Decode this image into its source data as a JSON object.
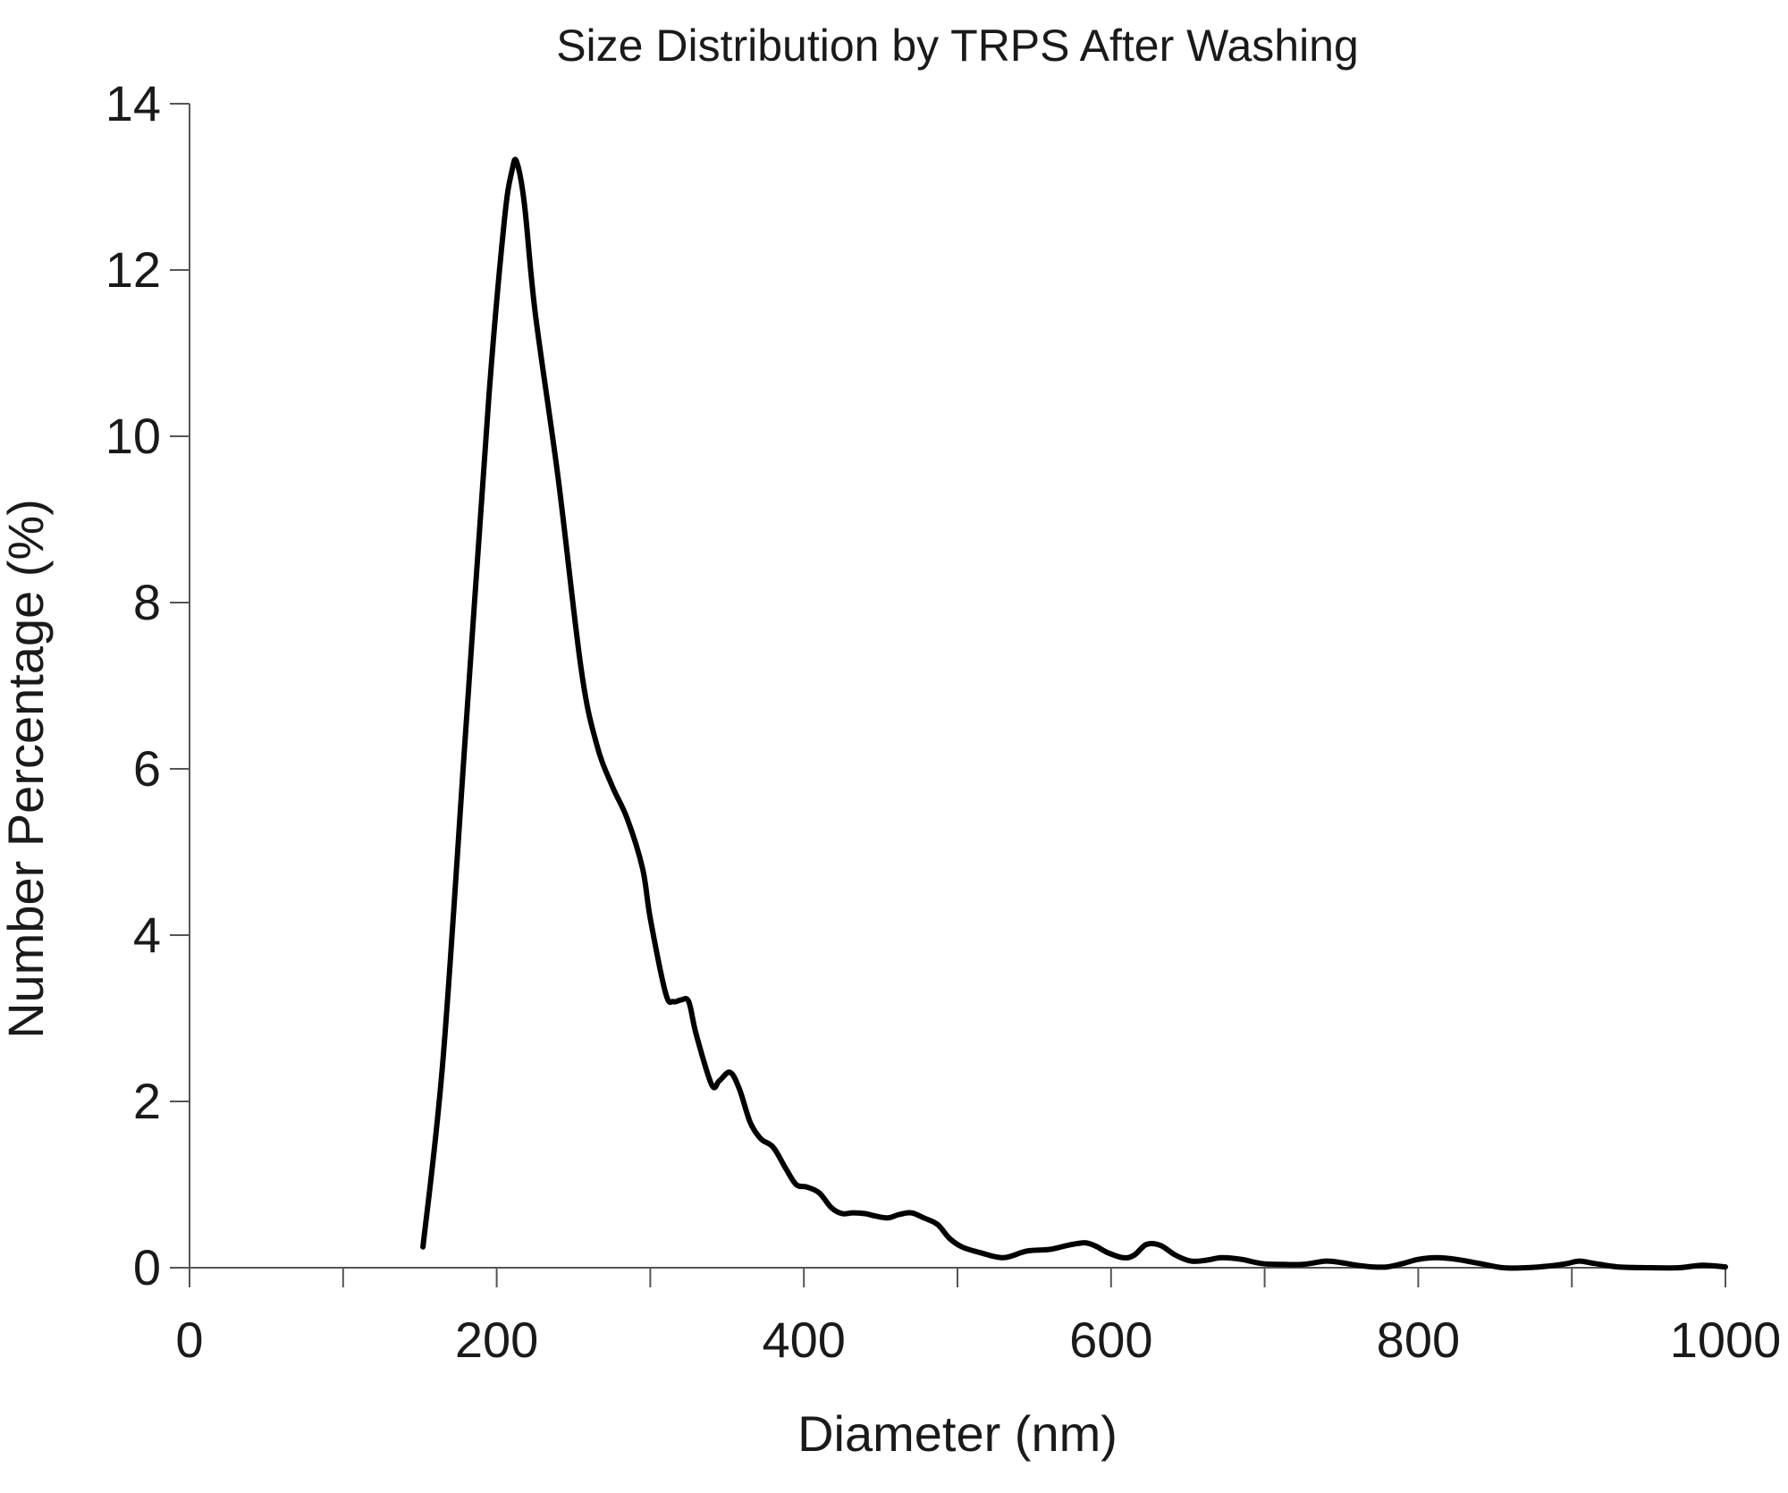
{
  "chart_data": {
    "type": "line",
    "title": "Size Distribution by TRPS After Washing",
    "xlabel": "Diameter (nm)",
    "ylabel": "Number Percentage (%)",
    "xlim": [
      0,
      1000
    ],
    "ylim": [
      0,
      14
    ],
    "x_ticks": [
      "0",
      "200",
      "400",
      "600",
      "800",
      "1000"
    ],
    "y_ticks": [
      "0",
      "2",
      "4",
      "6",
      "8",
      "10",
      "12",
      "14"
    ],
    "grid": false,
    "legend": "none",
    "line_color": "#000000",
    "series": [
      {
        "x": [
          152,
          165,
          180,
          195,
          205,
          210,
          213,
          218,
          225,
          240,
          255,
          265,
          275,
          285,
          295,
          300,
          310,
          315,
          320,
          325,
          330,
          340,
          345,
          352,
          358,
          365,
          372,
          380,
          388,
          395,
          402,
          410,
          418,
          425,
          432,
          440,
          447,
          455,
          462,
          470,
          478,
          487,
          495,
          503,
          515,
          530,
          545,
          560,
          572,
          583,
          590,
          598,
          608,
          615,
          623,
          632,
          642,
          652,
          662,
          672,
          685,
          698,
          712,
          725,
          740,
          750,
          760,
          770,
          780,
          790,
          800,
          812,
          825,
          840,
          855,
          870,
          885,
          897,
          905,
          915,
          930,
          950,
          970,
          985,
          1000
        ],
        "y": [
          0.25,
          2.5,
          6.5,
          10.5,
          12.6,
          13.2,
          13.3,
          12.8,
          11.5,
          9.5,
          7.2,
          6.3,
          5.8,
          5.4,
          4.8,
          4.2,
          3.3,
          3.2,
          3.22,
          3.2,
          2.8,
          2.2,
          2.25,
          2.35,
          2.15,
          1.75,
          1.55,
          1.45,
          1.2,
          1.0,
          0.97,
          0.9,
          0.72,
          0.65,
          0.66,
          0.65,
          0.62,
          0.6,
          0.64,
          0.66,
          0.6,
          0.52,
          0.35,
          0.25,
          0.18,
          0.12,
          0.2,
          0.22,
          0.27,
          0.3,
          0.26,
          0.18,
          0.12,
          0.15,
          0.28,
          0.27,
          0.15,
          0.08,
          0.09,
          0.12,
          0.1,
          0.05,
          0.04,
          0.04,
          0.08,
          0.06,
          0.03,
          0.01,
          0.01,
          0.05,
          0.1,
          0.12,
          0.1,
          0.05,
          0.0,
          0.0,
          0.02,
          0.05,
          0.08,
          0.05,
          0.01,
          0.0,
          0.0,
          0.03,
          0.01
        ]
      }
    ]
  }
}
